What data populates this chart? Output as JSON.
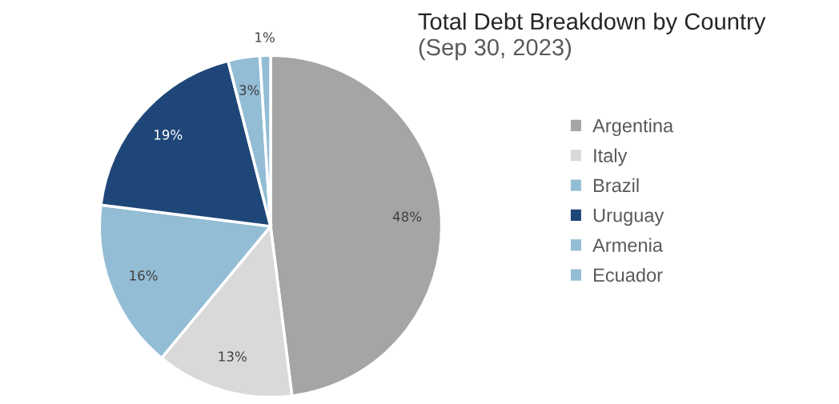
{
  "chart_data": {
    "type": "pie",
    "title": "Total Debt Breakdown by Country",
    "subtitle": "(Sep 30, 2023)",
    "categories": [
      "Argentina",
      "Italy",
      "Brazil",
      "Uruguay",
      "Armenia",
      "Ecuador"
    ],
    "values": [
      48,
      13,
      16,
      19,
      3,
      1
    ],
    "colors": [
      "#a5a5a5",
      "#d9d9d9",
      "#93bdd5",
      "#1f4678",
      "#93bdd5",
      "#93bdd5"
    ],
    "value_labels": [
      "48%",
      "13%",
      "16%",
      "19%",
      "3%",
      "1%"
    ],
    "legend": "right"
  }
}
